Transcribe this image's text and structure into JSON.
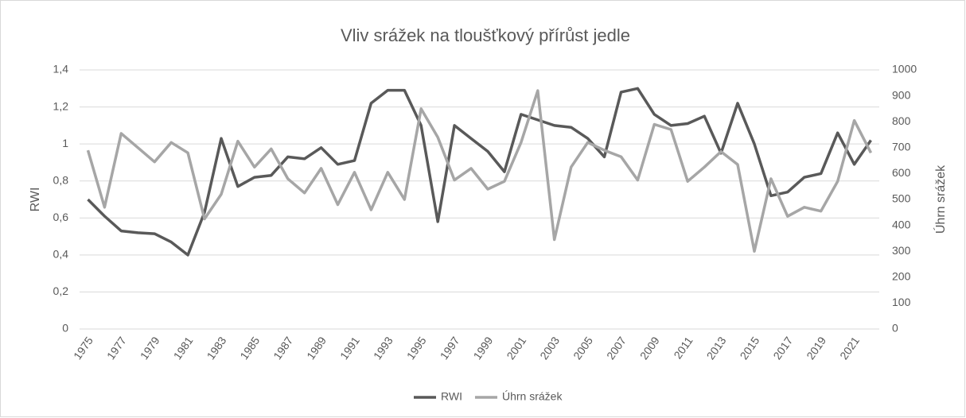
{
  "chart_data": {
    "type": "line",
    "title": "Vliv srážek na tloušťkový přírůst jedle",
    "y_label": "RWI",
    "y2_label": "Úhrn srážek",
    "categories": [
      "1975",
      null,
      "1977",
      null,
      "1979",
      null,
      "1981",
      null,
      "1983",
      null,
      "1985",
      null,
      "1987",
      null,
      "1989",
      null,
      "1991",
      null,
      "1993",
      null,
      "1995",
      null,
      "1997",
      null,
      "1999",
      null,
      "2001",
      null,
      "2003",
      null,
      "2005",
      null,
      "2007",
      null,
      "2009",
      null,
      "2011",
      null,
      "2013",
      null,
      "2015",
      null,
      "2017",
      null,
      "2019",
      null,
      "2021",
      null
    ],
    "series": [
      {
        "name": "RWI",
        "color": "#595959",
        "values": [
          0.7,
          0.61,
          0.53,
          0.52,
          0.515,
          0.47,
          0.4,
          0.63,
          1.03,
          0.77,
          0.82,
          0.83,
          0.93,
          0.92,
          0.98,
          0.89,
          0.91,
          1.22,
          1.29,
          1.29,
          1.1,
          0.58,
          1.1,
          1.03,
          0.96,
          0.85,
          1.16,
          1.13,
          1.1,
          1.09,
          1.03,
          0.93,
          1.28,
          1.3,
          1.16,
          1.1,
          1.11,
          1.15,
          0.95,
          1.22,
          1.0,
          0.72,
          0.74,
          0.82,
          0.84,
          1.06,
          0.89,
          1.02
        ]
      },
      {
        "name": "Úhrn srážek",
        "color": "#a6a6a6",
        "axis": "y2",
        "values": [
          690,
          470,
          755,
          700,
          645,
          720,
          680,
          425,
          520,
          725,
          625,
          695,
          580,
          525,
          620,
          480,
          605,
          460,
          605,
          500,
          850,
          740,
          575,
          620,
          540,
          570,
          720,
          920,
          345,
          625,
          720,
          690,
          665,
          575,
          790,
          770,
          570,
          625,
          685,
          635,
          300,
          580,
          435,
          470,
          455,
          570,
          805,
          680
        ]
      }
    ],
    "ylim": [
      0,
      1.4
    ],
    "yticks": [
      0,
      {
        "value": 0.2,
        "label": "0,2"
      },
      {
        "value": 0.4,
        "label": "0,4"
      },
      {
        "value": 0.6,
        "label": "0,6"
      },
      {
        "value": 0.8,
        "label": "0,8"
      },
      1,
      {
        "value": 1.2,
        "label": "1,2"
      },
      {
        "value": 1.4,
        "label": "1,4"
      }
    ],
    "y2lim": [
      0,
      1000
    ],
    "y2ticks": [
      0,
      100,
      200,
      300,
      400,
      500,
      600,
      700,
      800,
      900,
      1000
    ],
    "grid": true,
    "legend": "bottom"
  }
}
